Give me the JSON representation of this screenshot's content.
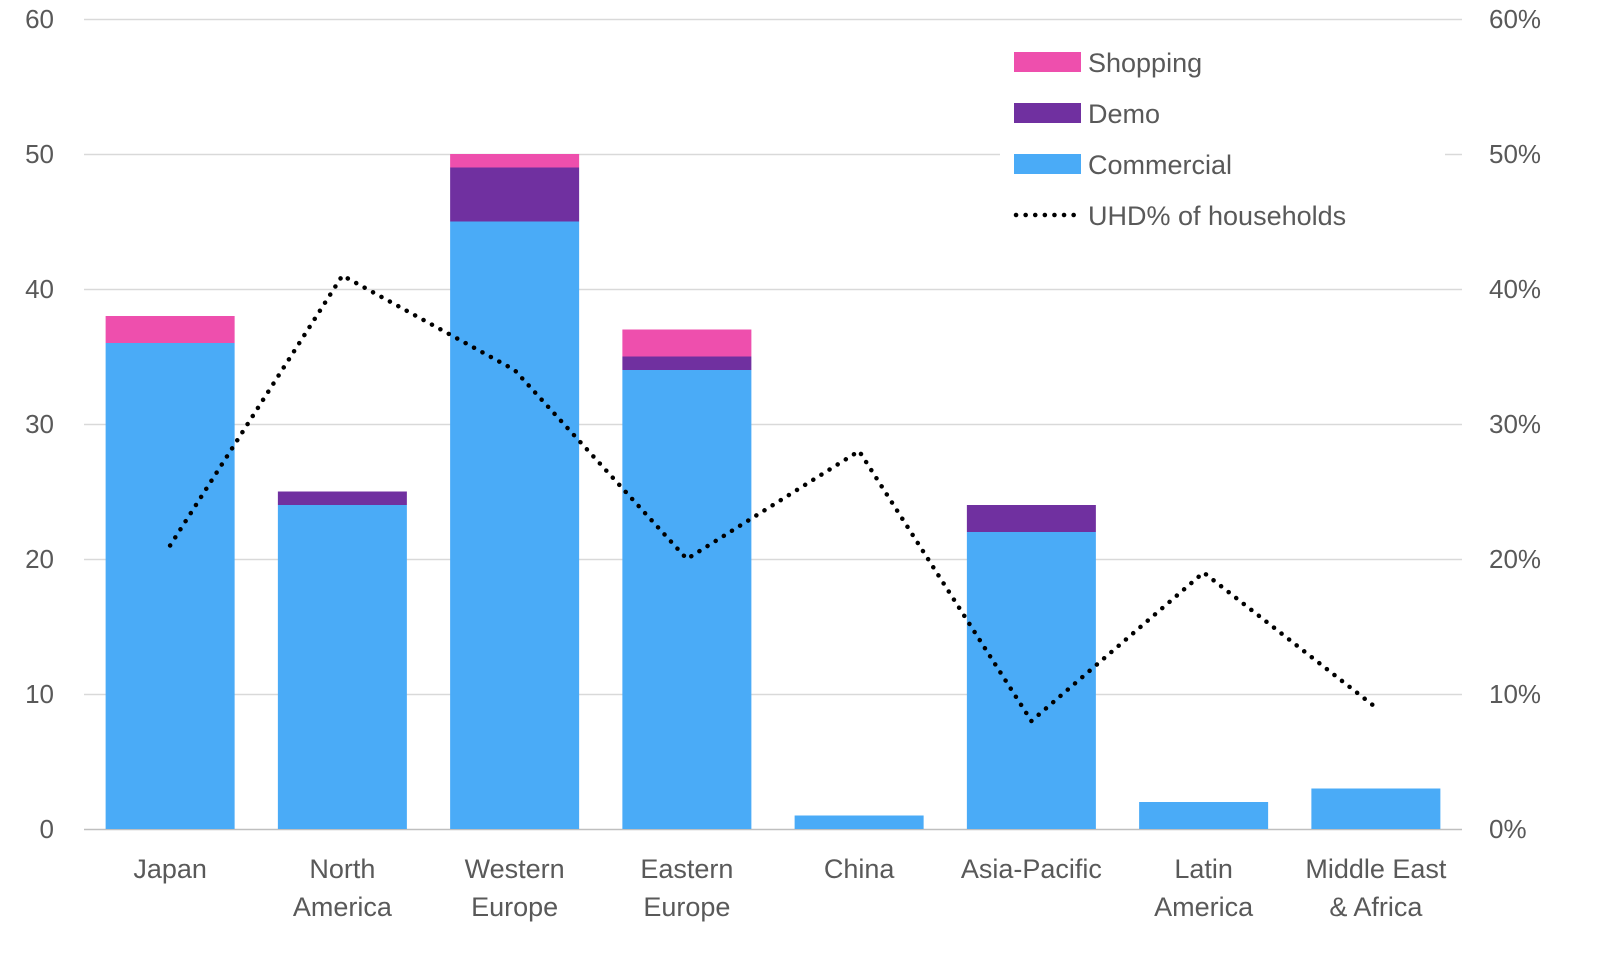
{
  "chart_data": {
    "type": "bar",
    "stacked": true,
    "categories": [
      "Japan",
      "North America",
      "Western Europe",
      "Eastern Europe",
      "China",
      "Asia-Pacific",
      "Latin America",
      "Middle East & Africa"
    ],
    "category_lines": [
      [
        "Japan"
      ],
      [
        "North",
        "America"
      ],
      [
        "Western",
        "Europe"
      ],
      [
        "Eastern",
        "Europe"
      ],
      [
        "China"
      ],
      [
        "Asia-Pacific"
      ],
      [
        "Latin",
        "America"
      ],
      [
        "Middle East",
        "& Africa"
      ]
    ],
    "series": [
      {
        "name": "Commercial",
        "values": [
          36,
          24,
          45,
          34,
          1,
          22,
          2,
          3
        ],
        "color": "#4AABF7"
      },
      {
        "name": "Demo",
        "values": [
          0,
          1,
          4,
          1,
          0,
          2,
          0,
          0
        ],
        "color": "#7030A0"
      },
      {
        "name": "Shopping",
        "values": [
          2,
          0,
          1,
          2,
          0,
          0,
          0,
          0
        ],
        "color": "#EE4FAD"
      }
    ],
    "line_series": {
      "name": "UHD% of households",
      "axis": "right",
      "values": [
        21,
        41,
        34,
        20,
        28,
        8,
        19,
        9
      ],
      "color": "#000000",
      "style": "dotted"
    },
    "ylim": [
      0,
      60
    ],
    "y_ticks": [
      "0",
      "10",
      "20",
      "30",
      "40",
      "50",
      "60"
    ],
    "y2lim": [
      0,
      60
    ],
    "y2_ticks": [
      "0%",
      "10%",
      "20%",
      "30%",
      "40%",
      "50%",
      "60%"
    ],
    "legend_order": [
      "Shopping",
      "Demo",
      "Commercial",
      "UHD% of households"
    ],
    "legend_position": "top-right",
    "grid": true
  }
}
